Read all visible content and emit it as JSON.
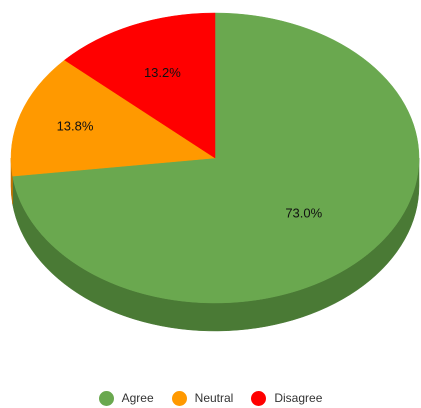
{
  "chart_data": {
    "type": "pie",
    "style": "3d",
    "categories": [
      "Agree",
      "Neutral",
      "Disagree"
    ],
    "values": [
      73.0,
      13.8,
      13.2
    ],
    "data_labels": [
      "73.0%",
      "13.8%",
      "13.2%"
    ],
    "colors": [
      "#6aa84f",
      "#ff9900",
      "#ff0000"
    ],
    "side_colors": [
      "#4a7a35",
      "#c07200",
      "#b00000"
    ],
    "legend_position": "bottom",
    "title": ""
  },
  "legend": {
    "items": [
      {
        "label": "Agree",
        "color": "#6aa84f"
      },
      {
        "label": "Neutral",
        "color": "#ff9900"
      },
      {
        "label": "Disagree",
        "color": "#ff0000"
      }
    ]
  }
}
